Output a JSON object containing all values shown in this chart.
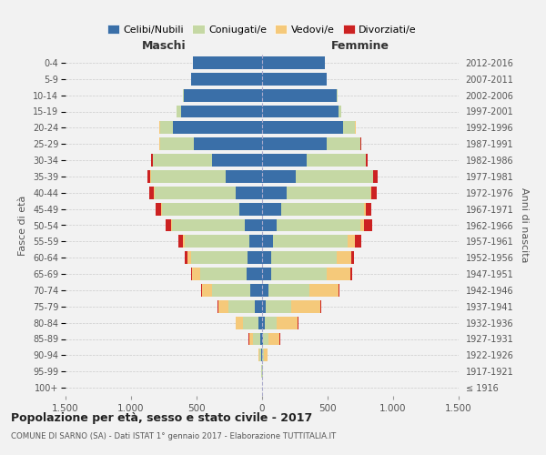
{
  "age_groups": [
    "100+",
    "95-99",
    "90-94",
    "85-89",
    "80-84",
    "75-79",
    "70-74",
    "65-69",
    "60-64",
    "55-59",
    "50-54",
    "45-49",
    "40-44",
    "35-39",
    "30-34",
    "25-29",
    "20-24",
    "15-19",
    "10-14",
    "5-9",
    "0-4"
  ],
  "birth_years": [
    "≤ 1916",
    "1917-1921",
    "1922-1926",
    "1927-1931",
    "1932-1936",
    "1937-1941",
    "1942-1946",
    "1947-1951",
    "1952-1956",
    "1957-1961",
    "1962-1966",
    "1967-1971",
    "1972-1976",
    "1977-1981",
    "1982-1986",
    "1987-1991",
    "1992-1996",
    "1997-2001",
    "2002-2006",
    "2007-2011",
    "2012-2016"
  ],
  "maschi": {
    "celibi": [
      0,
      2,
      5,
      15,
      30,
      55,
      90,
      120,
      110,
      100,
      130,
      175,
      200,
      280,
      380,
      520,
      680,
      620,
      600,
      540,
      530
    ],
    "coniugati": [
      0,
      3,
      15,
      55,
      115,
      205,
      295,
      355,
      430,
      490,
      560,
      590,
      620,
      570,
      450,
      260,
      100,
      30,
      5,
      0,
      0
    ],
    "vedovi": [
      0,
      2,
      8,
      30,
      55,
      75,
      75,
      60,
      30,
      15,
      5,
      5,
      3,
      3,
      2,
      2,
      2,
      0,
      0,
      0,
      0
    ],
    "divorziati": [
      0,
      0,
      0,
      2,
      3,
      5,
      8,
      10,
      20,
      35,
      40,
      40,
      35,
      25,
      15,
      5,
      2,
      0,
      0,
      0,
      0
    ]
  },
  "femmine": {
    "nubili": [
      0,
      1,
      3,
      10,
      18,
      30,
      50,
      70,
      70,
      80,
      110,
      145,
      185,
      255,
      340,
      490,
      620,
      580,
      570,
      490,
      480
    ],
    "coniugate": [
      0,
      3,
      12,
      40,
      90,
      195,
      310,
      420,
      500,
      570,
      640,
      630,
      640,
      590,
      450,
      260,
      90,
      25,
      5,
      0,
      0
    ],
    "vedove": [
      0,
      5,
      25,
      85,
      165,
      220,
      220,
      185,
      110,
      60,
      30,
      15,
      8,
      5,
      3,
      3,
      2,
      0,
      0,
      0,
      0
    ],
    "divorziate": [
      0,
      0,
      0,
      2,
      3,
      5,
      8,
      12,
      20,
      45,
      60,
      45,
      40,
      30,
      12,
      5,
      2,
      0,
      0,
      0,
      0
    ]
  },
  "color_celibi": "#3a6fa8",
  "color_coniugati": "#c5d8a4",
  "color_vedovi": "#f5c97a",
  "color_divorziati": "#cc2222",
  "title_main": "Popolazione per età, sesso e stato civile - 2017",
  "title_sub": "COMUNE DI SARNO (SA) - Dati ISTAT 1° gennaio 2017 - Elaborazione TUTTITALIA.IT",
  "xlabel_left": "Maschi",
  "xlabel_right": "Femmine",
  "ylabel_left": "Fasce di età",
  "ylabel_right": "Anni di nascita",
  "xlim": 1500,
  "xtick_labels": [
    "1.500",
    "1.000",
    "500",
    "0",
    "500",
    "1.000",
    "1.500"
  ],
  "bg_color": "#f2f2f2",
  "legend_labels": [
    "Celibi/Nubili",
    "Coniugati/e",
    "Vedovi/e",
    "Divorziati/e"
  ]
}
